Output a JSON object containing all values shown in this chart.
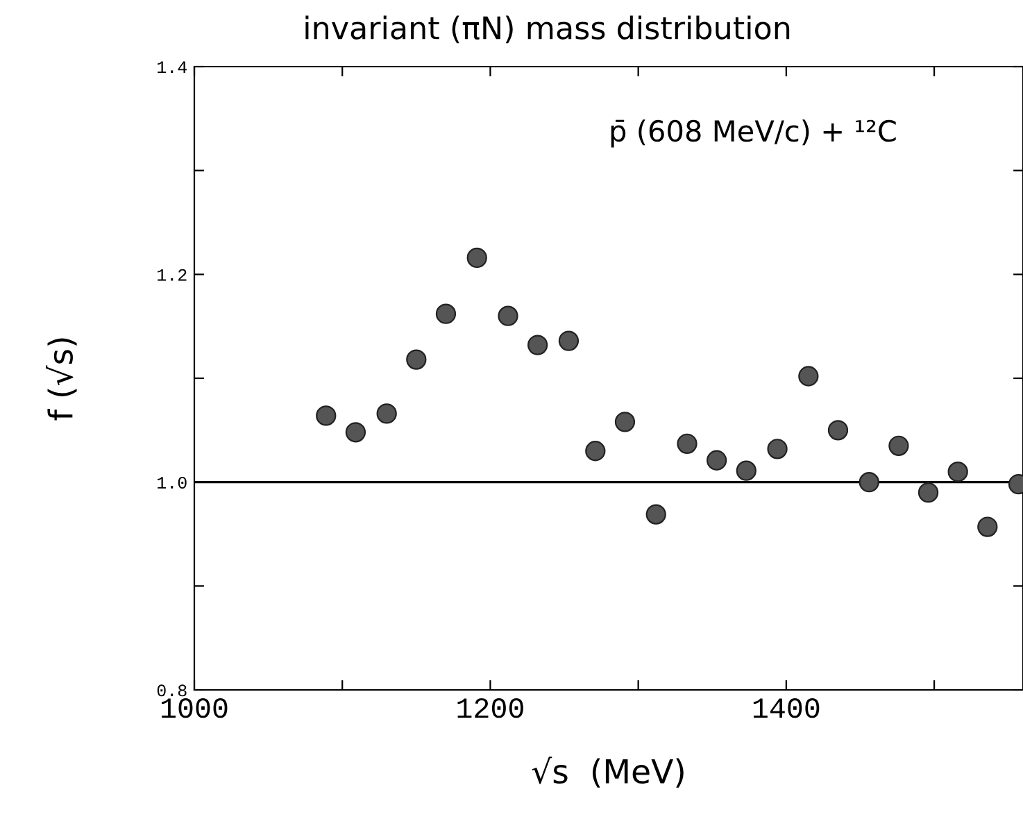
{
  "chart_data": {
    "type": "scatter",
    "title": "invariant (πN) mass distribution",
    "xlabel": "√s  (MeV)",
    "ylabel": "f (√s)",
    "annotations": [
      "p̄ (608 MeV/c) + ¹²C"
    ],
    "x": [
      1089,
      1109,
      1130,
      1150,
      1170,
      1191,
      1212,
      1232,
      1253,
      1271,
      1291,
      1312,
      1333,
      1353,
      1373,
      1394,
      1415,
      1435,
      1456,
      1476,
      1496,
      1516,
      1536,
      1557
    ],
    "series": [
      {
        "color": "#555555",
        "values": [
          1.064,
          1.048,
          1.066,
          1.118,
          1.162,
          1.216,
          1.16,
          1.132,
          1.136,
          1.03,
          1.058,
          0.969,
          1.037,
          1.021,
          1.011,
          1.032,
          1.102,
          1.05,
          1.0,
          1.035,
          0.99,
          1.01,
          0.957,
          0.998
        ]
      }
    ],
    "xlim": [
      1000,
      1560
    ],
    "xticks": [
      1000,
      {
        "value": 1100,
        "label": null
      },
      1200,
      {
        "value": 1300,
        "label": null
      },
      1400,
      {
        "value": 1500,
        "label": null
      }
    ],
    "ylim": [
      0.8,
      1.4
    ],
    "yticks": [
      {
        "value": 0.8,
        "label": "0.8"
      },
      {
        "value": 0.9,
        "label": null
      },
      {
        "value": 1.0,
        "label": "1.0"
      },
      {
        "value": 1.1,
        "label": null
      },
      {
        "value": 1.2,
        "label": "1.2"
      },
      {
        "value": 1.3,
        "label": null
      },
      {
        "value": 1.4,
        "label": "1.4"
      }
    ],
    "ref_lines": [
      {
        "axis": "y",
        "value": 1.0,
        "color": "#000000"
      }
    ],
    "marker": "circle",
    "grid": false,
    "legend": false
  }
}
